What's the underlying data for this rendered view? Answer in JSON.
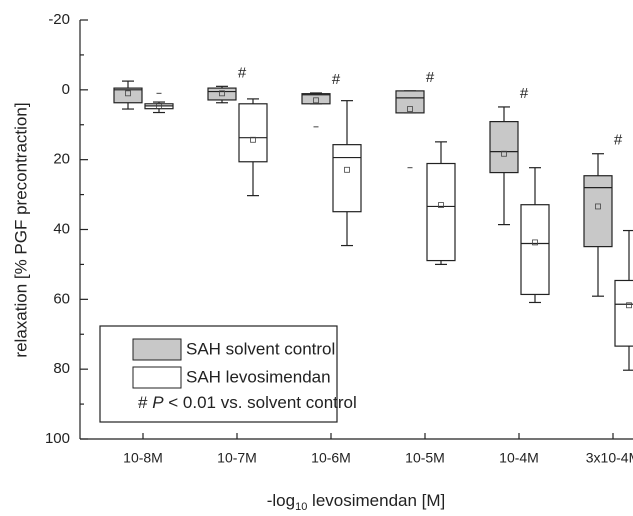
{
  "chart_data": {
    "type": "box",
    "y_label": "relaxation [% PGF precontraction]",
    "x_label_parts": [
      "-log",
      "10",
      " levosimendan [M]"
    ],
    "categories": [
      "10-8M",
      "10-7M",
      "10-6M",
      "10-5M",
      "10-4M",
      "3x10-4M"
    ],
    "ylim": [
      -20,
      100
    ],
    "yticks": [
      -20,
      0,
      20,
      40,
      60,
      80,
      100
    ],
    "y_inverted": true,
    "significance": [
      null,
      "#",
      "#",
      "#",
      "#",
      "#"
    ],
    "legend_note_parts": [
      "# ",
      "P",
      " < 0.01 vs. solvent control"
    ],
    "series": [
      {
        "name": "SAH solvent control",
        "color": "#c8c8c8",
        "whisker_low": [
          -2.5,
          -1,
          0.9,
          0.3,
          4.9,
          18.3
        ],
        "q1": [
          -0.5,
          -0.5,
          1.1,
          0.3,
          9.1,
          24.6
        ],
        "median": [
          0,
          0.5,
          1.4,
          2.3,
          17.7,
          28
        ],
        "q3": [
          3.7,
          2.9,
          4,
          6.6,
          23.7,
          44.9
        ],
        "whisker_high": [
          5.5,
          3.7,
          4,
          6.6,
          38.6,
          59.1
        ],
        "mean": [
          1,
          1,
          3,
          5.5,
          18.3,
          33.4
        ],
        "outliers": [
          [],
          [],
          [
            10.6
          ],
          [
            22.3
          ],
          [],
          []
        ]
      },
      {
        "name": "SAH levosimendan",
        "color": "#ffffff",
        "whisker_low": [
          3.5,
          2.6,
          3.1,
          14.9,
          22.3,
          40.3
        ],
        "q1": [
          4,
          4,
          15.7,
          21.1,
          32.9,
          54.6
        ],
        "median": [
          4.6,
          13.7,
          19.4,
          33.4,
          44,
          61.4
        ],
        "q3": [
          5.4,
          20.6,
          34.9,
          48.9,
          58.6,
          73.4
        ],
        "whisker_high": [
          6.5,
          30.3,
          44.6,
          50,
          60.9,
          80.3
        ],
        "mean": [
          4.6,
          14.3,
          22.9,
          33,
          43.7,
          61.7
        ],
        "outliers": [
          [
            1
          ],
          [],
          [],
          [],
          [],
          []
        ]
      }
    ]
  }
}
